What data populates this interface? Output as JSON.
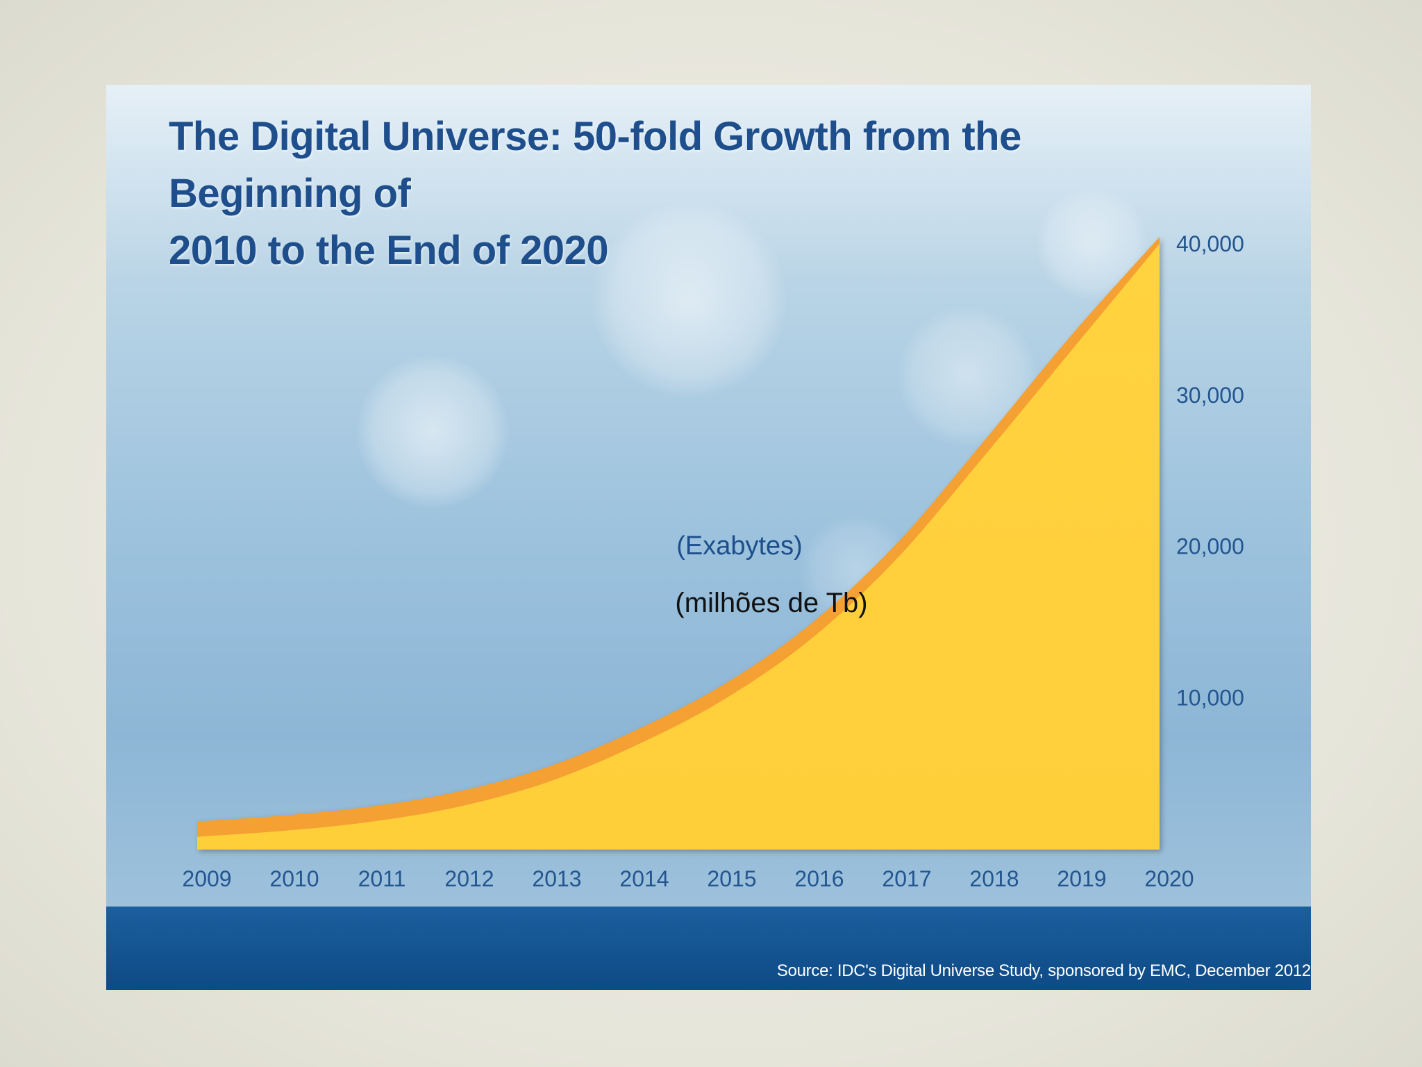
{
  "chart_data": {
    "type": "area",
    "title": "The Digital Universe: 50-fold Growth from the Beginning of 2010 to the End of 2020",
    "title_lines": [
      "The Digital Universe: 50-fold Growth from the Beginning of",
      "2010 to the End of 2020"
    ],
    "ylabel": "(Exabytes)",
    "ylabel_note": "(milhões de Tb)",
    "xlabel": "",
    "categories": [
      "2009",
      "2010",
      "2011",
      "2012",
      "2013",
      "2014",
      "2015",
      "2016",
      "2017",
      "2018",
      "2019",
      "2020"
    ],
    "series": [
      {
        "name": "Digital Universe (Exabytes)",
        "values": [
          800,
          1200,
          1800,
          2800,
          4400,
          6800,
          9800,
          13800,
          19200,
          26000,
          33000,
          40000
        ]
      }
    ],
    "y_ticks": [
      {
        "value": 10000,
        "label": "10,000"
      },
      {
        "value": 20000,
        "label": "20,000"
      },
      {
        "value": 30000,
        "label": "30,000"
      },
      {
        "value": 40000,
        "label": "40,000"
      }
    ],
    "ylim": [
      0,
      40000
    ],
    "grid": false,
    "y_axis_side": "right",
    "colors": {
      "fill": "#ffd23f",
      "edge": "#f5a032",
      "labels": "#23558f"
    },
    "source": "Source: IDC's Digital Universe Study, sponsored by EMC, December 2012"
  }
}
